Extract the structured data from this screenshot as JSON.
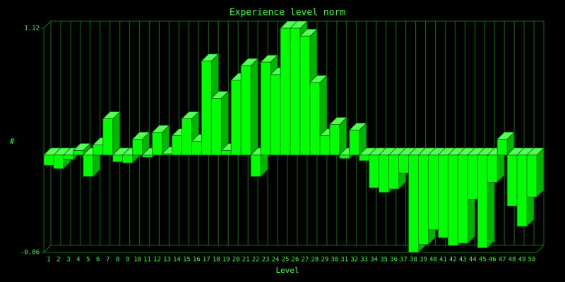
{
  "chart_data": {
    "type": "bar3d",
    "title": "Experience level norm",
    "x_label": "Level",
    "y_label": "#",
    "categories": [
      "1",
      "2",
      "3",
      "4",
      "5",
      "6",
      "7",
      "8",
      "9",
      "10",
      "11",
      "12",
      "13",
      "14",
      "15",
      "16",
      "17",
      "18",
      "19",
      "20",
      "21",
      "22",
      "23",
      "24",
      "25",
      "26",
      "27",
      "28",
      "29",
      "30",
      "31",
      "32",
      "33",
      "34",
      "35",
      "36",
      "37",
      "38",
      "39",
      "40",
      "41",
      "42",
      "43",
      "44",
      "45",
      "46",
      "47",
      "48",
      "49",
      "50"
    ],
    "values": [
      -0.09,
      -0.12,
      -0.04,
      0.04,
      -0.19,
      0.09,
      0.32,
      -0.06,
      -0.07,
      0.14,
      -0.02,
      0.2,
      0.01,
      0.17,
      0.32,
      0.12,
      0.83,
      0.5,
      0.04,
      0.66,
      0.79,
      -0.19,
      0.82,
      0.71,
      1.12,
      1.12,
      1.05,
      0.64,
      0.17,
      0.27,
      -0.03,
      0.22,
      -0.05,
      -0.29,
      -0.33,
      -0.3,
      -0.16,
      -0.86,
      -0.79,
      -0.66,
      -0.73,
      -0.8,
      -0.78,
      -0.39,
      -0.82,
      -0.24,
      0.14,
      -0.45,
      -0.63,
      -0.37
    ],
    "color": "#00ff00",
    "ylim": [
      -0.86,
      1.12
    ],
    "yticks": [
      -0.86,
      1.12
    ],
    "grid": true
  }
}
